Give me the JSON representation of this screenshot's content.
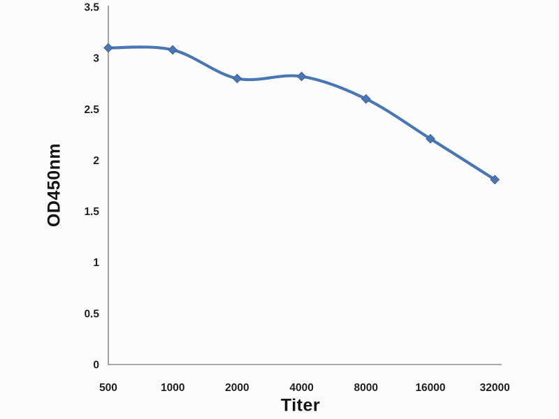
{
  "chart_data": {
    "type": "line",
    "title": "",
    "xlabel": "Titer",
    "ylabel": "OD450nm",
    "categories": [
      "500",
      "1000",
      "2000",
      "4000",
      "8000",
      "16000",
      "32000"
    ],
    "x": [
      500,
      1000,
      2000,
      4000,
      8000,
      16000,
      32000
    ],
    "series": [
      {
        "name": "OD450nm",
        "values": [
          3.1,
          3.08,
          2.8,
          2.82,
          2.6,
          2.21,
          1.81
        ],
        "color": "#4A76B4",
        "marker": "diamond",
        "marker_stroke": "#3D6499",
        "smooth": true
      }
    ],
    "ylim": [
      0,
      3.5
    ],
    "ytick_step": 0.5,
    "yticks": [
      "0",
      "0.5",
      "1",
      "1.5",
      "2",
      "2.5",
      "3",
      "3.5"
    ],
    "grid": false,
    "legend": "none",
    "axis_color": "#8c8c8c",
    "tick_label_color": "#1f1f1f",
    "background": "#fcfcfc"
  }
}
